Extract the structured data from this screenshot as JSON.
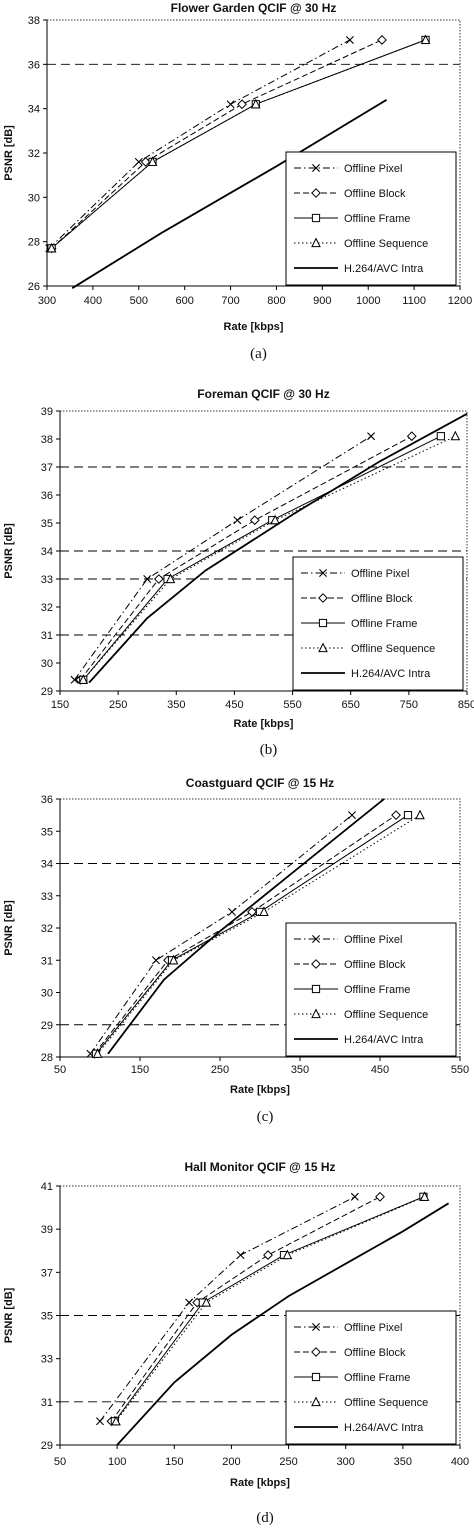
{
  "chart_data": [
    {
      "type": "line",
      "title": "Flower Garden QCIF @ 30 Hz",
      "xlabel": "Rate [kbps]",
      "ylabel": "PSNR [dB]",
      "caption": "(a)",
      "xlim": [
        300,
        1200
      ],
      "ylim": [
        26,
        38
      ],
      "xticks": [
        300,
        400,
        500,
        600,
        700,
        800,
        900,
        1000,
        1100,
        1200
      ],
      "yticks": [
        26,
        28,
        30,
        32,
        34,
        36,
        38
      ],
      "dashed_gridlines_y": [
        36
      ],
      "legend_position": "bottom-right",
      "series": [
        {
          "name": "Offline Pixel",
          "marker": "x",
          "line": "dashdot",
          "color": "#000000",
          "points": [
            [
              305,
              27.7
            ],
            [
              500,
              31.6
            ],
            [
              700,
              34.2
            ],
            [
              960,
              37.1
            ]
          ]
        },
        {
          "name": "Offline Block",
          "marker": "diamond",
          "line": "dashed",
          "color": "#000000",
          "points": [
            [
              310,
              27.7
            ],
            [
              515,
              31.6
            ],
            [
              725,
              34.2
            ],
            [
              1030,
              37.1
            ]
          ]
        },
        {
          "name": "Offline Frame",
          "marker": "square",
          "line": "solid-thin",
          "color": "#000000",
          "points": [
            [
              310,
              27.7
            ],
            [
              530,
              31.6
            ],
            [
              755,
              34.2
            ],
            [
              1125,
              37.1
            ]
          ]
        },
        {
          "name": "Offline Sequence",
          "marker": "triangle",
          "line": "dotted",
          "color": "#000000",
          "points": [
            [
              310,
              27.7
            ],
            [
              530,
              31.6
            ],
            [
              755,
              34.2
            ],
            [
              1125,
              37.1
            ]
          ]
        },
        {
          "name": "H.264/AVC Intra",
          "marker": "none",
          "line": "solid-thick",
          "color": "#000000",
          "points": [
            [
              355,
              25.9
            ],
            [
              550,
              28.4
            ],
            [
              800,
              31.4
            ],
            [
              1040,
              34.4
            ]
          ]
        }
      ]
    },
    {
      "type": "line",
      "title": "Foreman QCIF @ 30 Hz",
      "xlabel": "Rate [kbps]",
      "ylabel": "PSNR [dB]",
      "caption": "(b)",
      "xlim": [
        150,
        850
      ],
      "ylim": [
        29,
        39
      ],
      "xticks": [
        150,
        250,
        350,
        450,
        550,
        650,
        750,
        850
      ],
      "yticks": [
        29,
        30,
        31,
        32,
        33,
        34,
        35,
        36,
        37,
        38,
        39
      ],
      "dashed_gridlines_y": [
        31,
        33,
        34,
        37
      ],
      "legend_position": "bottom-right",
      "series": [
        {
          "name": "Offline Pixel",
          "marker": "x",
          "line": "dashdot",
          "color": "#000000",
          "points": [
            [
              175,
              29.4
            ],
            [
              300,
              33.0
            ],
            [
              455,
              35.1
            ],
            [
              685,
              38.1
            ]
          ]
        },
        {
          "name": "Offline Block",
          "marker": "diamond",
          "line": "dashed",
          "color": "#000000",
          "points": [
            [
              185,
              29.4
            ],
            [
              320,
              33.0
            ],
            [
              485,
              35.1
            ],
            [
              755,
              38.1
            ]
          ]
        },
        {
          "name": "Offline Frame",
          "marker": "square",
          "line": "solid-thin",
          "color": "#000000",
          "points": [
            [
              190,
              29.4
            ],
            [
              335,
              33.0
            ],
            [
              515,
              35.1
            ],
            [
              805,
              38.1
            ]
          ]
        },
        {
          "name": "Offline Sequence",
          "marker": "triangle",
          "line": "dotted",
          "color": "#000000",
          "points": [
            [
              190,
              29.4
            ],
            [
              340,
              33.0
            ],
            [
              520,
              35.1
            ],
            [
              830,
              38.1
            ]
          ]
        },
        {
          "name": "H.264/AVC Intra",
          "marker": "none",
          "line": "solid-thick",
          "color": "#000000",
          "points": [
            [
              200,
              29.3
            ],
            [
              300,
              31.6
            ],
            [
              400,
              33.3
            ],
            [
              550,
              35.3
            ],
            [
              700,
              37.2
            ],
            [
              850,
              38.9
            ]
          ]
        }
      ]
    },
    {
      "type": "line",
      "title": "Coastguard QCIF @ 15 Hz",
      "xlabel": "Rate [kbps]",
      "ylabel": "PSNR [dB]",
      "caption": "(c)",
      "xlim": [
        50,
        550
      ],
      "ylim": [
        28,
        36
      ],
      "xticks": [
        50,
        150,
        250,
        350,
        450,
        550
      ],
      "yticks": [
        28,
        29,
        30,
        31,
        32,
        33,
        34,
        35,
        36
      ],
      "dashed_gridlines_y": [
        29,
        34
      ],
      "legend_position": "bottom-right",
      "series": [
        {
          "name": "Offline Pixel",
          "marker": "x",
          "line": "dashdot",
          "color": "#000000",
          "points": [
            [
              88,
              28.1
            ],
            [
              170,
              31.0
            ],
            [
              265,
              32.5
            ],
            [
              415,
              35.5
            ]
          ]
        },
        {
          "name": "Offline Block",
          "marker": "diamond",
          "line": "dashed",
          "color": "#000000",
          "points": [
            [
              93,
              28.1
            ],
            [
              185,
              31.0
            ],
            [
              290,
              32.5
            ],
            [
              470,
              35.5
            ]
          ]
        },
        {
          "name": "Offline Frame",
          "marker": "square",
          "line": "solid-thin",
          "color": "#000000",
          "points": [
            [
              95,
              28.1
            ],
            [
              190,
              31.0
            ],
            [
              300,
              32.5
            ],
            [
              485,
              35.5
            ]
          ]
        },
        {
          "name": "Offline Sequence",
          "marker": "triangle",
          "line": "dotted",
          "color": "#000000",
          "points": [
            [
              97,
              28.1
            ],
            [
              192,
              31.0
            ],
            [
              305,
              32.5
            ],
            [
              500,
              35.5
            ]
          ]
        },
        {
          "name": "H.264/AVC Intra",
          "marker": "none",
          "line": "solid-thick",
          "color": "#000000",
          "points": [
            [
              110,
              28.1
            ],
            [
              180,
              30.4
            ],
            [
              250,
              31.9
            ],
            [
              350,
              33.9
            ],
            [
              455,
              36.0
            ]
          ]
        }
      ]
    },
    {
      "type": "line",
      "title": "Hall Monitor QCIF @ 15 Hz",
      "xlabel": "Rate [kbps]",
      "ylabel": "PSNR [dB]",
      "caption": "(d)",
      "xlim": [
        50,
        400
      ],
      "ylim": [
        29,
        41
      ],
      "xticks": [
        50,
        100,
        150,
        200,
        250,
        300,
        350,
        400
      ],
      "yticks": [
        29,
        31,
        33,
        35,
        37,
        39,
        41
      ],
      "dashed_gridlines_y": [
        31,
        35
      ],
      "legend_position": "bottom-right",
      "series": [
        {
          "name": "Offline Pixel",
          "marker": "x",
          "line": "dashdot",
          "color": "#000000",
          "points": [
            [
              85,
              30.1
            ],
            [
              163,
              35.6
            ],
            [
              208,
              37.8
            ],
            [
              308,
              40.5
            ]
          ]
        },
        {
          "name": "Offline Block",
          "marker": "diamond",
          "line": "dashed",
          "color": "#000000",
          "points": [
            [
              95,
              30.1
            ],
            [
              170,
              35.6
            ],
            [
              232,
              37.8
            ],
            [
              330,
              40.5
            ]
          ]
        },
        {
          "name": "Offline Frame",
          "marker": "square",
          "line": "solid-thin",
          "color": "#000000",
          "points": [
            [
              98,
              30.1
            ],
            [
              175,
              35.6
            ],
            [
              246,
              37.8
            ],
            [
              368,
              40.5
            ]
          ]
        },
        {
          "name": "Offline Sequence",
          "marker": "triangle",
          "line": "dotted",
          "color": "#000000",
          "points": [
            [
              99,
              30.1
            ],
            [
              178,
              35.6
            ],
            [
              249,
              37.8
            ],
            [
              369,
              40.5
            ]
          ]
        },
        {
          "name": "H.264/AVC Intra",
          "marker": "none",
          "line": "solid-thick",
          "color": "#000000",
          "points": [
            [
              100,
              29.0
            ],
            [
              150,
              31.9
            ],
            [
              200,
              34.1
            ],
            [
              250,
              35.9
            ],
            [
              300,
              37.4
            ],
            [
              350,
              38.9
            ],
            [
              390,
              40.2
            ]
          ]
        }
      ]
    }
  ]
}
